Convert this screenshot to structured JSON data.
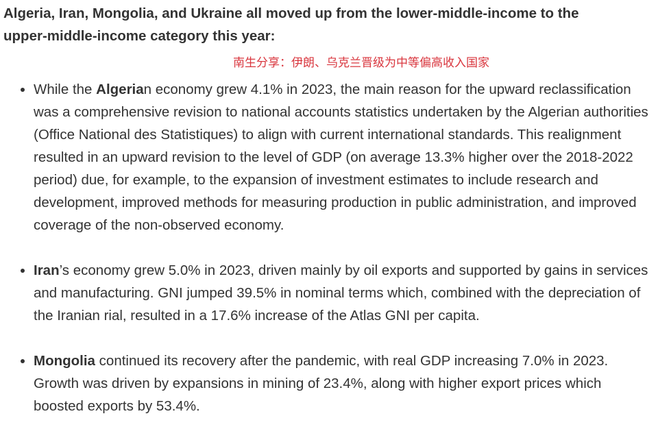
{
  "heading": "Algeria, Iran, Mongolia, and Ukraine all moved up from the lower-middle-income to the upper-middle-income category this year:",
  "note": "南生分享：伊朗、乌克兰晋级为中等偏高收入国家",
  "items": [
    {
      "lead": "While the ",
      "bold": "Algeria",
      "rest": "n economy grew 4.1% in 2023, the main reason for the upward reclassification was a comprehensive revision to national accounts statistics undertaken by the Algerian authorities (Office National des Statistiques) to align with current international standards. This realignment resulted in an upward revision to the level of GDP (on average 13.3% higher over the 2018-2022 period) due, for example, to the expansion of investment estimates to include research and development, improved methods for measuring production in public administration, and improved coverage of the non-observed economy."
    },
    {
      "bold": "Iran",
      "rest": "’s economy grew 5.0% in 2023, driven mainly by oil exports and supported by gains in services and manufacturing. GNI jumped 39.5% in nominal terms which, combined with the depreciation of the Iranian rial, resulted in a 17.6% increase of the Atlas GNI per capita."
    },
    {
      "bold": "Mongolia",
      "rest": " continued its recovery after the pandemic, with real GDP increasing 7.0% in 2023. Growth was driven by expansions in mining of 23.4%, along with higher export prices which boosted exports by 53.4%."
    }
  ]
}
